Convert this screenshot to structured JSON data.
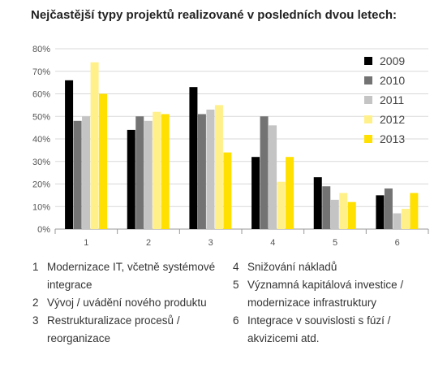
{
  "chart_data": {
    "type": "bar",
    "title": "Nejčastější typy projektů realizované v posledních dvou letech:",
    "categories": [
      "1",
      "2",
      "3",
      "4",
      "5",
      "6"
    ],
    "series": [
      {
        "name": "2009",
        "color": "#000000",
        "values": [
          66,
          44,
          63,
          32,
          23,
          15
        ]
      },
      {
        "name": "2010",
        "color": "#737373",
        "values": [
          48,
          50,
          51,
          50,
          19,
          18
        ]
      },
      {
        "name": "2011",
        "color": "#c4c4c4",
        "values": [
          50,
          48,
          53,
          46,
          13,
          7
        ]
      },
      {
        "name": "2012",
        "color": "#fff08a",
        "values": [
          74,
          52,
          55,
          21,
          16,
          9
        ]
      },
      {
        "name": "2013",
        "color": "#ffe000",
        "values": [
          60,
          51,
          34,
          32,
          12,
          16
        ]
      }
    ],
    "yticks": [
      "0%",
      "10%",
      "20%",
      "30%",
      "40%",
      "50%",
      "60%",
      "70%",
      "80%"
    ],
    "ylim": [
      0,
      80
    ],
    "grid": true,
    "legend": "top-right"
  },
  "notes": [
    {
      "num": "1",
      "text": "Modernizace IT, včetně systémové integrace"
    },
    {
      "num": "2",
      "text": "Vývoj / uvádění nového produktu"
    },
    {
      "num": "3",
      "text": "Restrukturalizace procesů / reorganizace"
    },
    {
      "num": "4",
      "text": "Snižování nákladů"
    },
    {
      "num": "5",
      "text": "Významná kapitálová investice / modernizace infrastruktury"
    },
    {
      "num": "6",
      "text": "Integrace v souvislosti s fúzí / akvizicemi atd."
    }
  ]
}
